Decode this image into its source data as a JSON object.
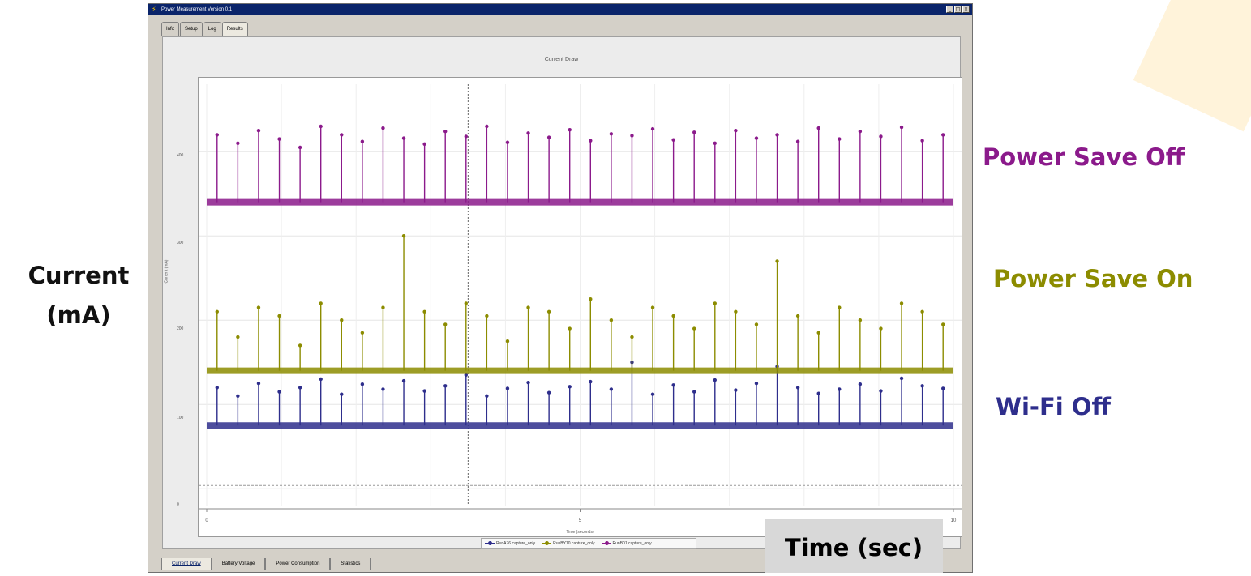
{
  "window": {
    "title": "Power Measurement Version 0.1",
    "controls": [
      "_",
      "□",
      "×"
    ]
  },
  "top_tabs": [
    "Info",
    "Setup",
    "Log",
    "Results"
  ],
  "bottom_tabs": [
    "Current Draw",
    "Battery Voltage",
    "Power Consumption",
    "Statistics"
  ],
  "annotations": {
    "y_axis": [
      "Current",
      "(mA)"
    ],
    "power_save_off": "Power Save Off",
    "power_save_on": "Power Save On",
    "wifi_off": "Wi-Fi Off",
    "time": "Time (sec)"
  },
  "colors": {
    "power_save_off": "#8b1a8b",
    "power_save_on": "#8c8c00",
    "wifi_off": "#2e2e8c",
    "title_bar": "#0a246a"
  },
  "chart_data": {
    "type": "line",
    "title": "Current Draw",
    "xlabel": "Time (seconds)",
    "ylabel": "Current (mA)",
    "xlim": [
      0,
      10
    ],
    "ylim": [
      -20,
      480
    ],
    "x_ticks": [
      "0",
      "5",
      "10"
    ],
    "y_ticks": [
      "0",
      "100",
      "200",
      "300",
      "400"
    ],
    "legend": [
      "RunA76 capture_only",
      "RunBY10 capture_only",
      "RunB01 capture_only"
    ],
    "series": [
      {
        "name": "RunA76 capture_only",
        "baseline": 75,
        "spikes": [
          120,
          110,
          125,
          115,
          120,
          130,
          112,
          124,
          118,
          128,
          116,
          122,
          135,
          110,
          119,
          126,
          114,
          121,
          127,
          118,
          150,
          112,
          123,
          115,
          129,
          117,
          125,
          145,
          120,
          113,
          118,
          124,
          116,
          131,
          122,
          119
        ],
        "color": "#2e2e8c"
      },
      {
        "name": "RunBY10 capture_only",
        "baseline": 140,
        "spikes": [
          210,
          180,
          215,
          205,
          170,
          220,
          200,
          185,
          215,
          300,
          210,
          195,
          220,
          205,
          175,
          215,
          210,
          190,
          225,
          200,
          180,
          215,
          205,
          190,
          220,
          210,
          195,
          270,
          205,
          185,
          215,
          200,
          190,
          220,
          210,
          195
        ],
        "color": "#8c8c00"
      },
      {
        "name": "RunB01 capture_only",
        "baseline": 340,
        "spikes": [
          420,
          410,
          425,
          415,
          405,
          430,
          420,
          412,
          428,
          416,
          409,
          424,
          418,
          430,
          411,
          422,
          417,
          426,
          413,
          421,
          419,
          427,
          414,
          423,
          410,
          425,
          416,
          420,
          412,
          428,
          415,
          424,
          418,
          429,
          413,
          420
        ],
        "color": "#8b1a8b"
      }
    ]
  }
}
